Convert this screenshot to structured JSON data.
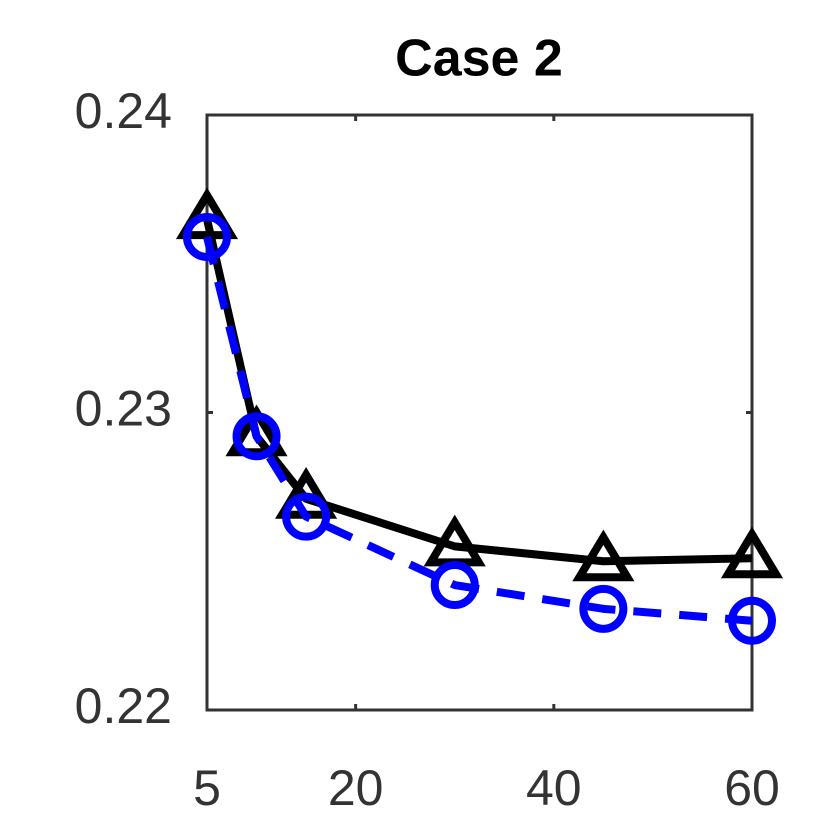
{
  "chart_data": {
    "type": "line",
    "title": "Case 2",
    "x": [
      5,
      10,
      15,
      30,
      45,
      60
    ],
    "series": [
      {
        "color": "#000000",
        "marker": "triangle",
        "linestyle": "solid",
        "values": [
          0.2365,
          0.2292,
          0.2271,
          0.2255,
          0.225,
          0.2251
        ]
      },
      {
        "color": "#0000ff",
        "marker": "circle",
        "linestyle": "dashed",
        "values": [
          0.2359,
          0.2292,
          0.2265,
          0.2242,
          0.2234,
          0.223
        ]
      }
    ],
    "xlim": [
      5,
      60
    ],
    "xticks": [
      5,
      20,
      40,
      60
    ],
    "ylim": [
      0.22,
      0.24
    ],
    "yticks": [
      0.22,
      0.23,
      0.24
    ],
    "grid": false
  }
}
